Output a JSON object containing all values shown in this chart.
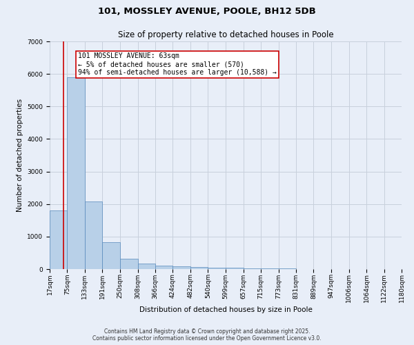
{
  "title_line1": "101, MOSSLEY AVENUE, POOLE, BH12 5DB",
  "title_line2": "Size of property relative to detached houses in Poole",
  "xlabel": "Distribution of detached houses by size in Poole",
  "ylabel": "Number of detached properties",
  "bins": [
    17,
    75,
    133,
    191,
    250,
    308,
    366,
    424,
    482,
    540,
    599,
    657,
    715,
    773,
    831,
    889,
    947,
    1006,
    1064,
    1122,
    1180
  ],
  "bar_heights": [
    1800,
    5900,
    2070,
    830,
    310,
    175,
    100,
    75,
    60,
    40,
    35,
    25,
    20,
    15,
    10,
    8,
    5,
    5,
    3,
    3,
    3
  ],
  "bar_color": "#b8d0e8",
  "bar_edge_color": "#5588bb",
  "background_color": "#e8eef8",
  "grid_color": "#c8d0dc",
  "property_size": 63,
  "red_line_color": "#cc0000",
  "annotation_line1": "101 MOSSLEY AVENUE: 63sqm",
  "annotation_line2": "← 5% of detached houses are smaller (570)",
  "annotation_line3": "94% of semi-detached houses are larger (10,588) →",
  "annotation_box_color": "#ffffff",
  "annotation_border_color": "#cc0000",
  "ylim": [
    0,
    7000
  ],
  "yticks": [
    0,
    1000,
    2000,
    3000,
    4000,
    5000,
    6000,
    7000
  ],
  "footer_line1": "Contains HM Land Registry data © Crown copyright and database right 2025.",
  "footer_line2": "Contains public sector information licensed under the Open Government Licence v3.0.",
  "title_fontsize": 9.5,
  "subtitle_fontsize": 8.5,
  "axis_label_fontsize": 7.5,
  "tick_fontsize": 6.5,
  "annotation_fontsize": 7,
  "footer_fontsize": 5.5
}
